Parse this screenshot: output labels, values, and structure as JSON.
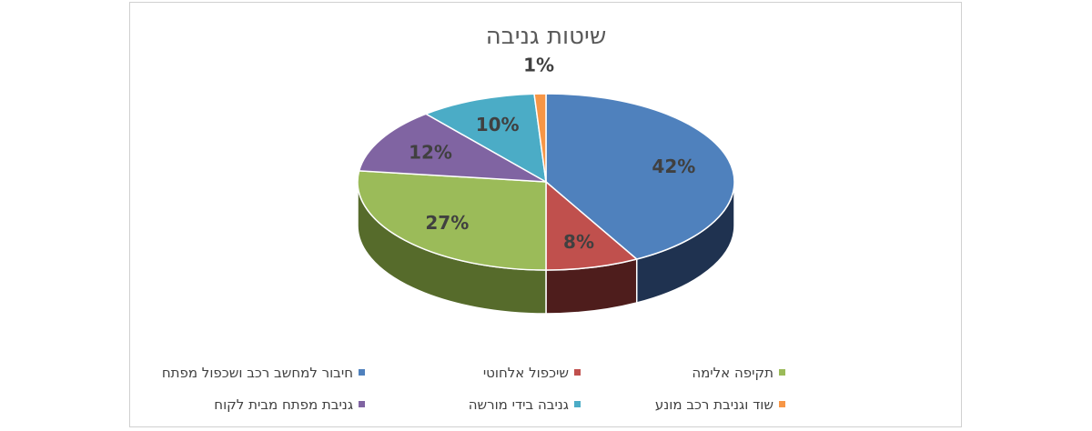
{
  "chart_data": {
    "type": "pie",
    "title": "שיטות גניבה",
    "slices": [
      {
        "name": "חיבור למחשב רכב ושכפול מפתח",
        "value": 42,
        "label": "42%",
        "color": "#4f81bd",
        "side_color": "#1f3250"
      },
      {
        "name": "שיכפול אלחוטי",
        "value": 8,
        "label": "8%",
        "color": "#c0504d",
        "side_color": "#4e1d1c"
      },
      {
        "name": "תקיפה אלימה",
        "value": 27,
        "label": "27%",
        "color": "#9bbb59",
        "side_color": "#566b2b"
      },
      {
        "name": "גניבת מפתח מבית לקוח",
        "value": 12,
        "label": "12%",
        "color": "#8064a2",
        "side_color": "#463760"
      },
      {
        "name": "גניבה בידי מורשה",
        "value": 10,
        "label": "10%",
        "color": "#4bacc6",
        "side_color": "#245f70"
      },
      {
        "name": "שוד וגניבת רכב מונע",
        "value": 1,
        "label": "1%",
        "color": "#f79646",
        "side_color": "#9a5217"
      }
    ],
    "legend_position": "bottom"
  }
}
